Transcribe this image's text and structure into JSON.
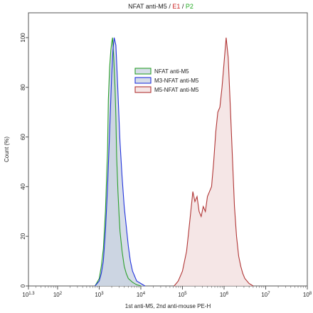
{
  "chart_data": {
    "type": "area",
    "title_parts": [
      {
        "text": "NFAT anti-M5",
        "color": "#222222"
      },
      {
        "text": " / ",
        "color": "#222222"
      },
      {
        "text": "E1",
        "color": "#cc2222"
      },
      {
        "text": " / ",
        "color": "#222222"
      },
      {
        "text": "P2",
        "color": "#22aa22"
      }
    ],
    "xlabel": "1st anti-M5, 2nd anti-mouse PE-H",
    "ylabel": "Count (%)",
    "xscale": "log",
    "xlim": [
      1.3,
      8
    ],
    "ylim": [
      0,
      110
    ],
    "x_ticks": [
      {
        "base": "10",
        "exp": "1.3",
        "value": 1.3
      },
      {
        "base": "10",
        "exp": "2",
        "value": 2
      },
      {
        "base": "10",
        "exp": "3",
        "value": 3
      },
      {
        "base": "10",
        "exp": "4",
        "value": 4
      },
      {
        "base": "10",
        "exp": "5",
        "value": 5
      },
      {
        "base": "10",
        "exp": "6",
        "value": 6
      },
      {
        "base": "10",
        "exp": "7",
        "value": 7
      },
      {
        "base": "10",
        "exp": "8",
        "value": 8
      }
    ],
    "y_ticks": [
      "0",
      "20",
      "40",
      "60",
      "80",
      "100"
    ],
    "y_tick_values": [
      0,
      20,
      40,
      60,
      80,
      100
    ],
    "legend": {
      "position": "upper-center"
    },
    "series": [
      {
        "name": "NFAT anti-M5",
        "color": "#2ca02c",
        "fill": "#c8d2e0",
        "log_x": [
          2.9,
          3.0,
          3.05,
          3.1,
          3.15,
          3.2,
          3.22,
          3.25,
          3.28,
          3.3,
          3.32,
          3.35,
          3.38,
          3.4,
          3.42,
          3.45,
          3.48,
          3.5,
          3.55,
          3.6,
          3.65,
          3.7,
          3.8,
          3.9,
          4.0
        ],
        "y": [
          0,
          3,
          8,
          15,
          30,
          55,
          75,
          88,
          95,
          98,
          100,
          92,
          80,
          68,
          52,
          38,
          28,
          22,
          14,
          8,
          5,
          3,
          1.5,
          0.5,
          0
        ]
      },
      {
        "name": "M3-NFAT anti-M5",
        "color": "#2233dd",
        "fill": "#c8d2e0",
        "log_x": [
          2.9,
          3.0,
          3.05,
          3.1,
          3.15,
          3.2,
          3.25,
          3.3,
          3.33,
          3.36,
          3.4,
          3.42,
          3.45,
          3.48,
          3.5,
          3.55,
          3.6,
          3.65,
          3.7,
          3.75,
          3.8,
          3.85,
          3.9,
          4.0,
          4.1
        ],
        "y": [
          0,
          2,
          5,
          10,
          22,
          40,
          62,
          85,
          95,
          100,
          97,
          90,
          78,
          66,
          58,
          44,
          32,
          24,
          16,
          10,
          6,
          4,
          2,
          1,
          0
        ]
      },
      {
        "name": "M5-NFAT anti-M5",
        "color": "#b03535",
        "fill": "#f2dede",
        "log_x": [
          4.8,
          4.9,
          5.0,
          5.1,
          5.15,
          5.2,
          5.25,
          5.3,
          5.35,
          5.4,
          5.45,
          5.5,
          5.55,
          5.6,
          5.65,
          5.7,
          5.75,
          5.8,
          5.85,
          5.9,
          5.95,
          6.0,
          6.05,
          6.1,
          6.15,
          6.2,
          6.25,
          6.3,
          6.35,
          6.4,
          6.45,
          6.5,
          6.6,
          6.7
        ],
        "y": [
          0,
          2,
          6,
          14,
          22,
          30,
          38,
          34,
          36,
          30,
          28,
          32,
          30,
          36,
          38,
          40,
          50,
          62,
          70,
          72,
          80,
          90,
          100,
          92,
          72,
          52,
          32,
          20,
          12,
          8,
          5,
          3,
          1,
          0
        ]
      }
    ]
  }
}
